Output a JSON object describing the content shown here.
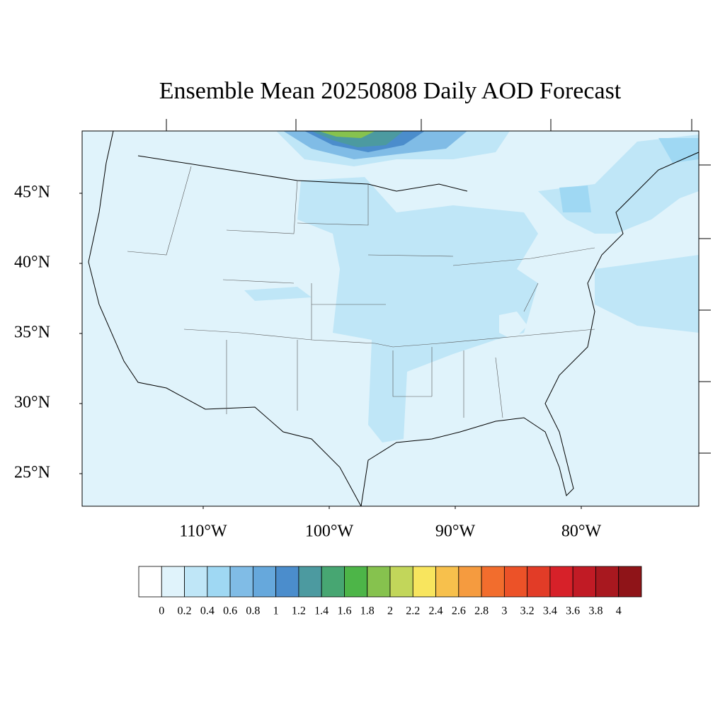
{
  "title": "Ensemble Mean 20250808 Daily AOD Forecast",
  "lat_ticks": [
    {
      "value": 45,
      "label": "45°N"
    },
    {
      "value": 40,
      "label": "40°N"
    },
    {
      "value": 35,
      "label": "35°N"
    },
    {
      "value": 30,
      "label": "30°N"
    },
    {
      "value": 25,
      "label": "25°N"
    }
  ],
  "lon_ticks": [
    {
      "value": -110,
      "label": "110°W"
    },
    {
      "value": -100,
      "label": "100°W"
    },
    {
      "value": -90,
      "label": "90°W"
    },
    {
      "value": -80,
      "label": "80°W"
    }
  ],
  "colorbar": {
    "levels": [
      0,
      0.2,
      0.4,
      0.6,
      0.8,
      1,
      1.2,
      1.4,
      1.6,
      1.8,
      2,
      2.2,
      2.4,
      2.6,
      2.8,
      3,
      3.2,
      3.4,
      3.6,
      3.8,
      4
    ],
    "colors": [
      "#ffffff",
      "#e0f3fb",
      "#bfe6f7",
      "#9fd8f3",
      "#80bce6",
      "#66a8dc",
      "#4b8dcc",
      "#4c9aa0",
      "#47a672",
      "#4db548",
      "#86c24e",
      "#c2d65a",
      "#f8e55e",
      "#f7c04c",
      "#f59b3f",
      "#f26d2d",
      "#ec5228",
      "#e23c27",
      "#d72129",
      "#c11b25",
      "#a8181f",
      "#8f1418"
    ]
  }
}
